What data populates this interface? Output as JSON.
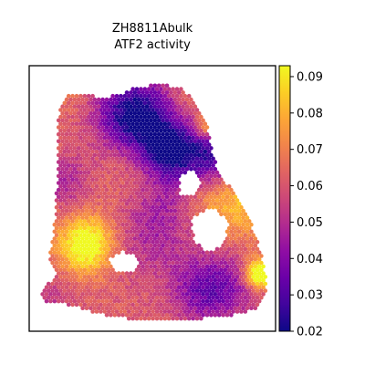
{
  "chart_data": {
    "type": "heatmap",
    "title_lines": [
      "ZH8811Abulk",
      "ATF2 activity"
    ],
    "xlabel": "",
    "ylabel": "",
    "colormap": "plasma",
    "value_range": [
      0.02,
      0.093
    ],
    "colorbar_ticks": [
      0.02,
      0.03,
      0.04,
      0.05,
      0.06,
      0.07,
      0.08,
      0.09
    ],
    "colorbar_tick_labels": [
      "0.02",
      "0.03",
      "0.04",
      "0.05",
      "0.06",
      "0.07",
      "0.08",
      "0.09"
    ],
    "axes_ticks_visible": false,
    "grid": false
  }
}
